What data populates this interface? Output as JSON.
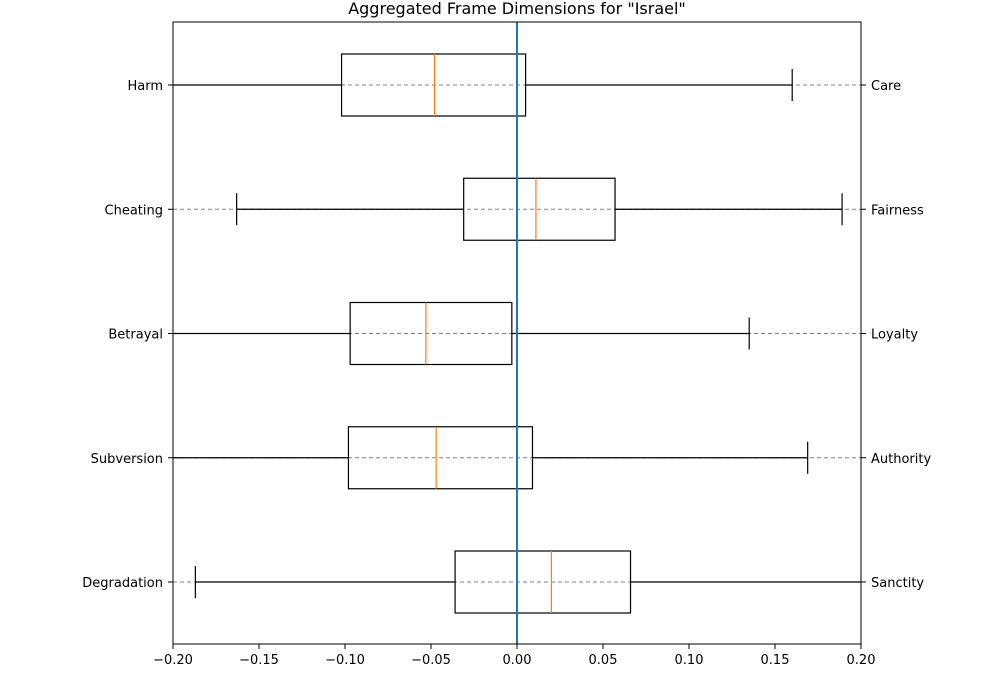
{
  "chart_data": {
    "type": "box",
    "orientation": "horizontal",
    "title": "Aggregated Frame Dimensions for \"Israel\"",
    "xlim": [
      -0.2,
      0.2
    ],
    "xticks": [
      -0.2,
      -0.15,
      -0.1,
      -0.05,
      0.0,
      0.05,
      0.1,
      0.15,
      0.2
    ],
    "xtick_labels": [
      "−0.20",
      "−0.15",
      "−0.10",
      "−0.05",
      "0.00",
      "0.05",
      "0.10",
      "0.15",
      "0.20"
    ],
    "reference_line_x": 0.0,
    "grid": "dashed horizontal lines at each category",
    "colors": {
      "box": "#000000",
      "median": "#ff7f0e",
      "reference_line": "#1f77b4",
      "grid": "#808080"
    },
    "categories": [
      {
        "left_label": "Harm",
        "right_label": "Care",
        "whisker_low": -0.2,
        "q1": -0.102,
        "median": -0.048,
        "q3": 0.005,
        "whisker_high": 0.16,
        "low_cap": false,
        "high_cap": true
      },
      {
        "left_label": "Cheating",
        "right_label": "Fairness",
        "whisker_low": -0.163,
        "q1": -0.031,
        "median": 0.011,
        "q3": 0.057,
        "whisker_high": 0.189,
        "low_cap": true,
        "high_cap": true
      },
      {
        "left_label": "Betrayal",
        "right_label": "Loyalty",
        "whisker_low": -0.2,
        "q1": -0.097,
        "median": -0.053,
        "q3": -0.003,
        "whisker_high": 0.135,
        "low_cap": false,
        "high_cap": true
      },
      {
        "left_label": "Subversion",
        "right_label": "Authority",
        "whisker_low": -0.2,
        "q1": -0.098,
        "median": -0.047,
        "q3": 0.009,
        "whisker_high": 0.169,
        "low_cap": false,
        "high_cap": true
      },
      {
        "left_label": "Degradation",
        "right_label": "Sanctity",
        "whisker_low": -0.187,
        "q1": -0.036,
        "median": 0.02,
        "q3": 0.066,
        "whisker_high": 0.2,
        "low_cap": true,
        "high_cap": false
      }
    ]
  }
}
